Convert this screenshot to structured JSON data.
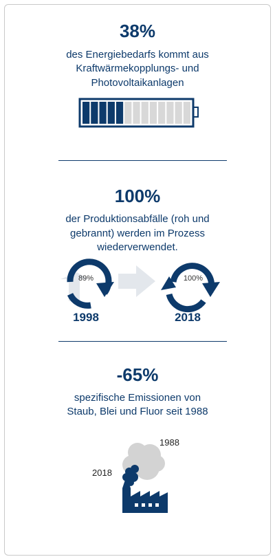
{
  "section_energy": {
    "stat": "38%",
    "description_lines": [
      "des Energiebedarfs kommt aus",
      "Kraftwärmekopplungs- und",
      "Photovoltaikanlagen"
    ],
    "battery_fill_fraction": 0.38,
    "battery_segments_total": 13,
    "battery_segments_filled": 5
  },
  "section_waste": {
    "stat": "100%",
    "description_lines": [
      "der Produktionsabfälle (roh und",
      "gebrannt) werden im Prozess",
      "wiederverwendet."
    ],
    "left_cycle": {
      "percent_label": "89%",
      "year": "1998",
      "fraction": 0.89
    },
    "right_cycle": {
      "percent_label": "100%",
      "year": "2018",
      "fraction": 1.0
    }
  },
  "section_emissions": {
    "stat": "-65%",
    "description_lines": [
      "spezifische Emissionen von",
      "Staub, Blei und Fluor seit 1988"
    ],
    "cloud_year_large": "1988",
    "cloud_year_small": "2018"
  },
  "colors": {
    "primary": "#0d3a6b",
    "light_gray": "#d8d8d8",
    "arrow_gray": "#e3e7ec",
    "border": "#c9c9c9"
  },
  "icons": [
    "battery-icon",
    "recycle-cycle-icon",
    "forward-arrow-icon",
    "factory-icon",
    "smoke-cloud-icon"
  ]
}
